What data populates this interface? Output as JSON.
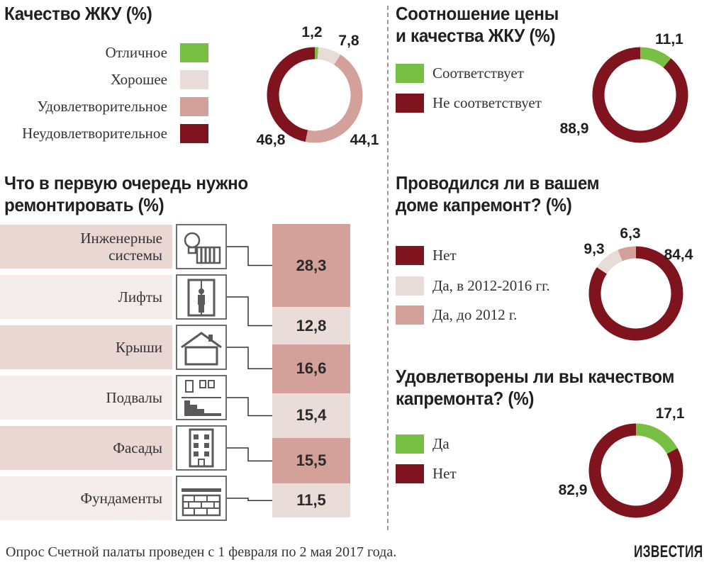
{
  "colors": {
    "green": "#77c043",
    "light": "#e8dcd8",
    "pink": "#d4a09a",
    "dark": "#80141e",
    "band": "#ead7d3",
    "band_alt": "#f4ecea"
  },
  "footer": "Опрос Счетной палаты проведен с 1 февраля по 2 мая 2017 года.",
  "brand": "ИЗВЕСТИЯ",
  "chart_data": [
    {
      "type": "pie",
      "title": "Качество ЖКУ (%)",
      "legend": "left",
      "categories": [
        "Отличное",
        "Хорошее",
        "Удовлетворительное",
        "Неудовлетворительное"
      ],
      "values": [
        1.2,
        7.8,
        44.1,
        46.8
      ],
      "value_labels": [
        "1,2",
        "7,8",
        "44,1",
        "46,8"
      ],
      "colors": [
        "#77c043",
        "#e8dcd8",
        "#d4a09a",
        "#80141e"
      ]
    },
    {
      "type": "pie",
      "title_lines": [
        "Соотношение цены",
        "и качества ЖКУ (%)"
      ],
      "legend": "left",
      "categories": [
        "Соответствует",
        "Не соответствует"
      ],
      "values": [
        11.1,
        88.9
      ],
      "value_labels": [
        "11,1",
        "88,9"
      ],
      "colors": [
        "#77c043",
        "#80141e"
      ]
    },
    {
      "type": "bar",
      "title_lines": [
        "Что в первую очередь нужно",
        "ремонтировать (%)"
      ],
      "categories": [
        "Инженерные системы",
        "Лифты",
        "Крыши",
        "Подвалы",
        "Фасады",
        "Фундаменты"
      ],
      "label_lines": [
        [
          "Инженерные",
          "системы"
        ],
        [
          "Лифты"
        ],
        [
          "Крыши"
        ],
        [
          "Подвалы"
        ],
        [
          "Фасады"
        ],
        [
          "Фундаменты"
        ]
      ],
      "icons": [
        "lightbulb-radiator-icon",
        "elevator-icon",
        "roof-icon",
        "basement-stairs-icon",
        "facade-building-icon",
        "foundation-bricks-icon"
      ],
      "values": [
        28.3,
        12.8,
        16.6,
        15.4,
        15.5,
        11.5
      ],
      "value_labels": [
        "28,3",
        "12,8",
        "16,6",
        "15,4",
        "15,5",
        "11,5"
      ]
    },
    {
      "type": "pie",
      "title_lines": [
        "Проводился ли в вашем",
        "доме капремонт? (%)"
      ],
      "legend": "left",
      "categories": [
        "Нет",
        "Да, в 2012-2016 гг.",
        "Да, до 2012 г."
      ],
      "values": [
        84.4,
        9.3,
        6.3
      ],
      "value_labels": [
        "84,4",
        "9,3",
        "6,3"
      ],
      "colors": [
        "#80141e",
        "#e8dcd8",
        "#d4a09a"
      ]
    },
    {
      "type": "pie",
      "title_lines": [
        "Удовлетворены ли вы качеством",
        "капремонта? (%)"
      ],
      "legend": "left",
      "categories": [
        "Да",
        "Нет"
      ],
      "values": [
        17.1,
        82.9
      ],
      "value_labels": [
        "17,1",
        "82,9"
      ],
      "colors": [
        "#77c043",
        "#80141e"
      ]
    }
  ]
}
